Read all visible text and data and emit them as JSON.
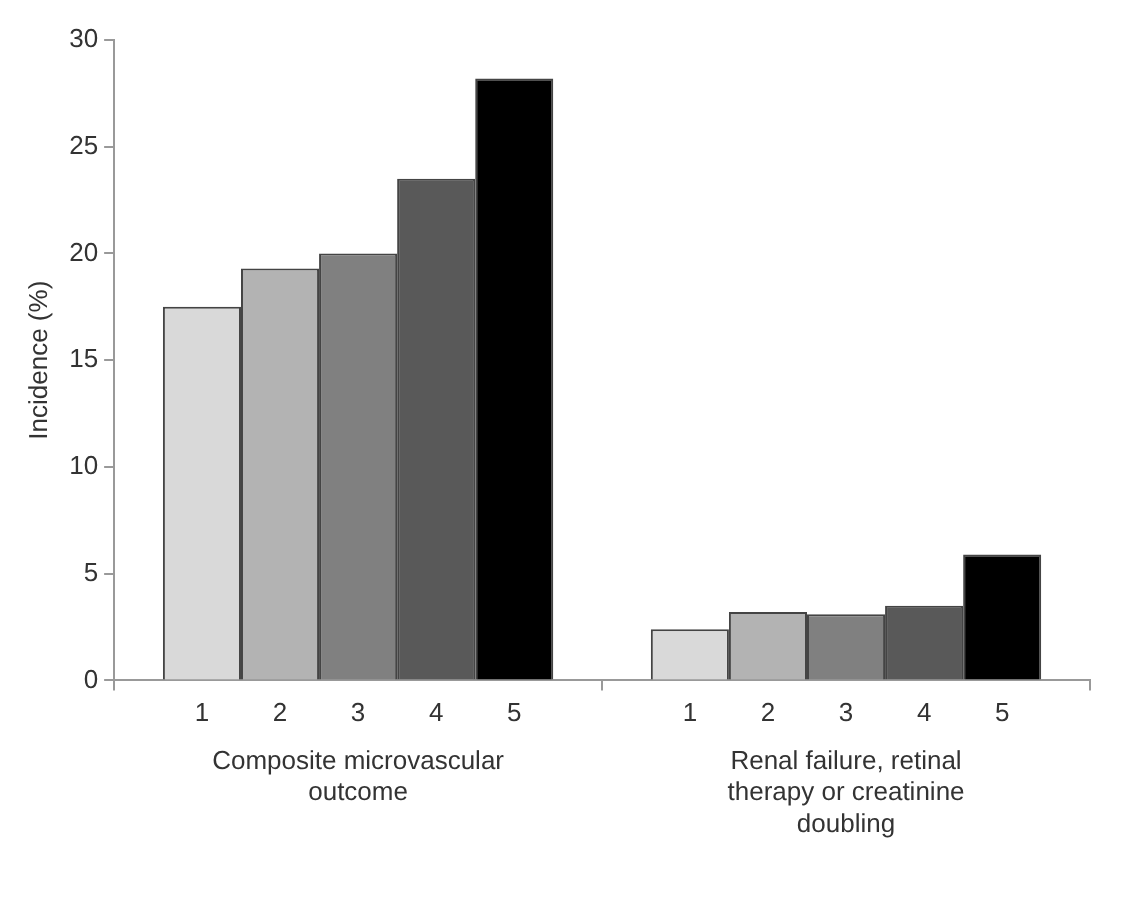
{
  "chart_data": {
    "type": "bar",
    "ylabel": "Incidence (%)",
    "categories": [
      "Composite microvascular outcome",
      "Renal failure, retinal therapy or creatinine doubling"
    ],
    "series": [
      {
        "name": "1",
        "color": "#d9d9d9",
        "values": [
          17.5,
          2.4
        ]
      },
      {
        "name": "2",
        "color": "#b3b3b3",
        "values": [
          19.3,
          3.2
        ]
      },
      {
        "name": "3",
        "color": "#808080",
        "values": [
          20.0,
          3.1
        ]
      },
      {
        "name": "4",
        "color": "#595959",
        "values": [
          23.5,
          3.5
        ]
      },
      {
        "name": "5",
        "color": "#000000",
        "values": [
          28.2,
          5.9
        ]
      }
    ],
    "ylim": [
      0,
      30
    ],
    "yticks": [
      0,
      5,
      10,
      15,
      20,
      25,
      30
    ],
    "legend": false
  }
}
